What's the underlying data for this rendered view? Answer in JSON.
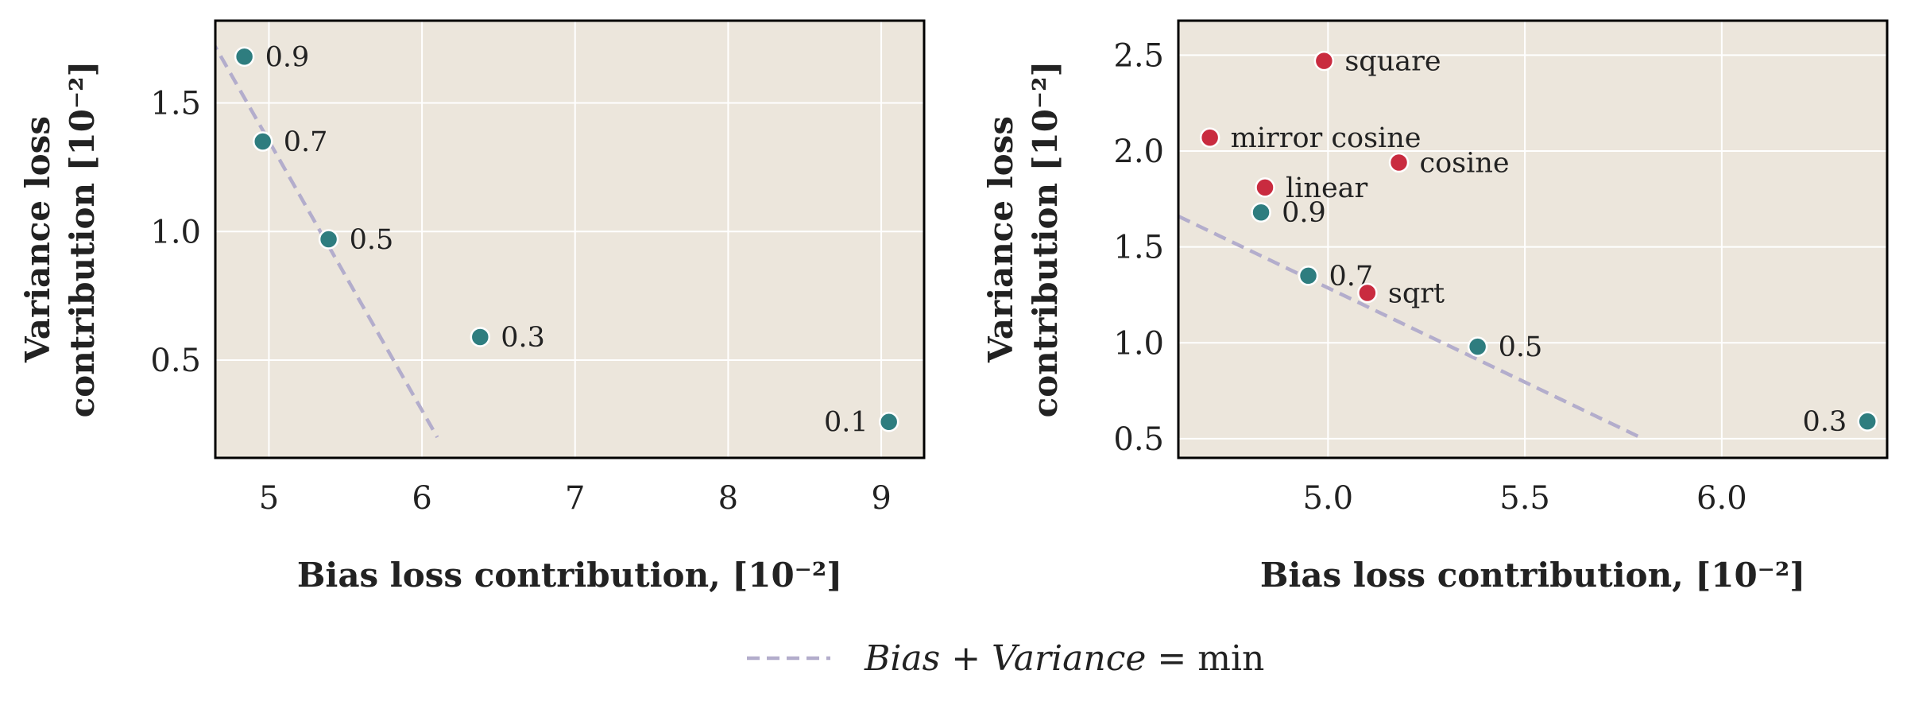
{
  "colors": {
    "panel_bg": "#ece6dc",
    "grid": "#ffffff",
    "frame": "#000000",
    "teal": "#2e7d7f",
    "red": "#c92b3f",
    "line": "#b3adcc"
  },
  "chart_data": [
    {
      "type": "scatter",
      "xlabel": "Bias loss contribution, [10⁻²]",
      "ylabel_line1": "Variance loss",
      "ylabel_line2": "contribution [10⁻²]",
      "xlim": [
        4.65,
        9.28
      ],
      "ylim": [
        0.12,
        1.82
      ],
      "xticks": [
        5,
        6,
        7,
        8,
        9
      ],
      "yticks": [
        0.5,
        1.0,
        1.5
      ],
      "xtick_labels": [
        "5",
        "6",
        "7",
        "8",
        "9"
      ],
      "ytick_labels": [
        "0.5",
        "1.0",
        "1.5"
      ],
      "grid": true,
      "points": [
        {
          "x": 4.84,
          "y": 1.68,
          "label": "0.9",
          "color": "teal",
          "side": "right"
        },
        {
          "x": 4.96,
          "y": 1.35,
          "label": "0.7",
          "color": "teal",
          "side": "right"
        },
        {
          "x": 5.39,
          "y": 0.97,
          "label": "0.5",
          "color": "teal",
          "side": "right"
        },
        {
          "x": 6.38,
          "y": 0.59,
          "label": "0.3",
          "color": "teal",
          "side": "right"
        },
        {
          "x": 9.05,
          "y": 0.26,
          "label": "0.1",
          "color": "teal",
          "side": "left"
        }
      ],
      "line": {
        "x": [
          4.62,
          6.1
        ],
        "y": [
          1.75,
          0.2
        ]
      }
    },
    {
      "type": "scatter",
      "xlabel": "Bias loss contribution, [10⁻²]",
      "ylabel_line1": "Variance loss",
      "ylabel_line2": "contribution [10⁻²]",
      "xlim": [
        4.62,
        6.42
      ],
      "ylim": [
        0.4,
        2.68
      ],
      "xticks": [
        5.0,
        5.5,
        6.0
      ],
      "yticks": [
        0.5,
        1.0,
        1.5,
        2.0,
        2.5
      ],
      "xtick_labels": [
        "5.0",
        "5.5",
        "6.0"
      ],
      "ytick_labels": [
        "0.5",
        "1.0",
        "1.5",
        "2.0",
        "2.5"
      ],
      "grid": true,
      "points": [
        {
          "x": 4.99,
          "y": 2.47,
          "label": "square",
          "color": "red",
          "side": "right"
        },
        {
          "x": 4.7,
          "y": 2.07,
          "label": "mirror cosine",
          "color": "red",
          "side": "right"
        },
        {
          "x": 5.18,
          "y": 1.94,
          "label": "cosine",
          "color": "red",
          "side": "right"
        },
        {
          "x": 4.84,
          "y": 1.81,
          "label": "linear",
          "color": "red",
          "side": "right"
        },
        {
          "x": 4.83,
          "y": 1.68,
          "label": "0.9",
          "color": "teal",
          "side": "right"
        },
        {
          "x": 4.95,
          "y": 1.35,
          "label": "0.7",
          "color": "teal",
          "side": "right"
        },
        {
          "x": 5.1,
          "y": 1.26,
          "label": "sqrt",
          "color": "red",
          "side": "right"
        },
        {
          "x": 5.38,
          "y": 0.98,
          "label": "0.5",
          "color": "teal",
          "side": "right"
        },
        {
          "x": 6.37,
          "y": 0.59,
          "label": "0.3",
          "color": "teal",
          "side": "left"
        }
      ],
      "line": {
        "x": [
          4.62,
          5.8
        ],
        "y": [
          1.66,
          0.5
        ]
      }
    }
  ],
  "legend": {
    "label_italic": "Bias + Variance",
    "label_tail": " = min",
    "position": "bottom-center"
  }
}
